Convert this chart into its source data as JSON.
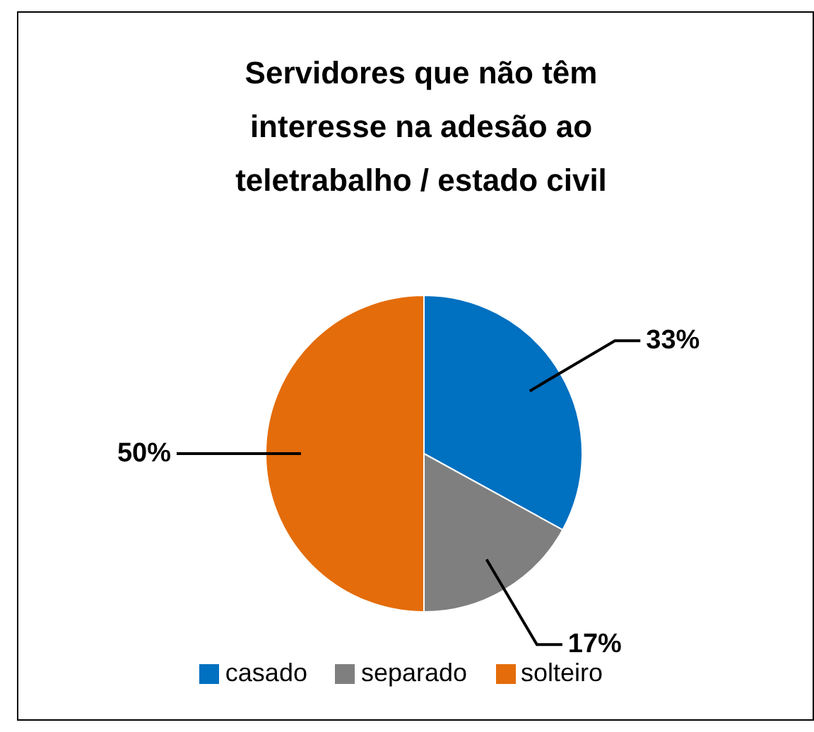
{
  "chart_data": {
    "type": "pie",
    "title": "Servidores que não têm interesse na adesão ao teletrabalho / estado civil",
    "categories": [
      "casado",
      "separado",
      "solteiro"
    ],
    "values": [
      33,
      17,
      50
    ],
    "colors": [
      "#0070c0",
      "#7f7f7f",
      "#e46c0a"
    ],
    "value_labels": [
      "33%",
      "17%",
      "50%"
    ],
    "legend": "bottom"
  }
}
